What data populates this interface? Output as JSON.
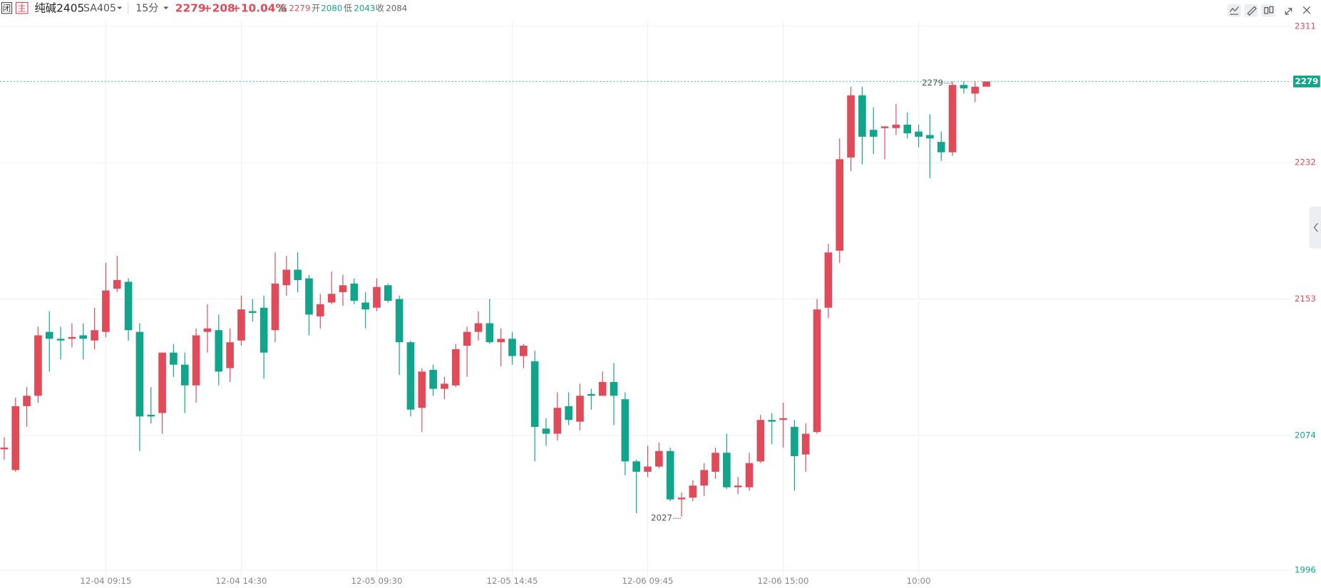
{
  "header": {
    "status": "闭",
    "main": "主",
    "name": "纯碱2405",
    "code": "SA405",
    "period": "15分",
    "price": 2279,
    "change": "+208",
    "change_pct": "+10.04%",
    "stats": [
      {
        "label": "高",
        "value": 2279
      },
      {
        "label": "开",
        "value": 2080
      },
      {
        "label": "低",
        "value": 2043
      },
      {
        "label": "收",
        "value": 2084
      }
    ]
  },
  "chart_data": {
    "type": "candlestick",
    "categories": [
      null,
      null,
      null,
      null,
      null,
      null,
      null,
      null,
      null,
      "12-04 09:15",
      null,
      null,
      null,
      null,
      null,
      null,
      null,
      null,
      null,
      null,
      null,
      "12-04 14:30",
      null,
      null,
      null,
      null,
      null,
      null,
      null,
      null,
      null,
      null,
      null,
      "12-05 09:30",
      null,
      null,
      null,
      null,
      null,
      null,
      null,
      null,
      null,
      null,
      null,
      "12-05 14:45",
      null,
      null,
      null,
      null,
      null,
      null,
      null,
      null,
      null,
      null,
      null,
      "12-06 09:45",
      null,
      null,
      null,
      null,
      null,
      null,
      null,
      null,
      null,
      null,
      null,
      "12-06 15:00",
      null,
      null,
      null,
      null,
      null,
      null,
      null,
      null,
      null,
      null,
      null,
      "10:00",
      null,
      null,
      null,
      null,
      null,
      null
    ],
    "open": [
      2066,
      2054,
      2091,
      2097,
      2134,
      2130,
      2130,
      2132,
      2129,
      2134,
      2159,
      2163,
      2134,
      2086,
      2087,
      2122,
      2115,
      2103,
      2134,
      2135,
      2113,
      2129,
      2146,
      2148,
      2135,
      2161,
      2170,
      2165,
      2143,
      2151,
      2157,
      2162,
      2151,
      2148,
      2161,
      2153,
      2128,
      2090,
      2112,
      2101,
      2103,
      2126,
      2134,
      2139,
      2128,
      2130,
      2120,
      2117,
      2078,
      2075,
      2091,
      2082,
      2098,
      2097,
      2105,
      2095,
      2059,
      2053,
      2056,
      2065,
      2037,
      2038,
      2045,
      2053,
      2064,
      2044,
      2044,
      2059,
      2083,
      2083,
      2079,
      2063,
      2076,
      2148,
      2181,
      2235,
      2271,
      2251,
      2252,
      2252,
      2254,
      2250,
      2248,
      2244,
      2238,
      2277,
      2272,
      2276
    ],
    "high": [
      2073,
      2096,
      2102,
      2137,
      2146,
      2137,
      2139,
      2139,
      2148,
      2174,
      2178,
      2165,
      2139,
      2102,
      2122,
      2127,
      2122,
      2136,
      2150,
      2144,
      2136,
      2155,
      2153,
      2155,
      2180,
      2178,
      2180,
      2167,
      2156,
      2169,
      2167,
      2165,
      2157,
      2165,
      2162,
      2155,
      2129,
      2113,
      2115,
      2108,
      2127,
      2137,
      2146,
      2153,
      2136,
      2134,
      2127,
      2123,
      2084,
      2099,
      2099,
      2104,
      2101,
      2111,
      2116,
      2099,
      2060,
      2068,
      2070,
      2067,
      2041,
      2048,
      2058,
      2067,
      2075,
      2050,
      2064,
      2086,
      2087,
      2093,
      2083,
      2081,
      2153,
      2185,
      2246,
      2276,
      2276,
      2264,
      2253,
      2266,
      2261,
      2254,
      2260,
      2250,
      2279,
      2279,
      2279,
      2279
    ],
    "low": [
      2060,
      2053,
      2079,
      2093,
      2111,
      2118,
      2125,
      2118,
      2124,
      2131,
      2157,
      2129,
      2065,
      2081,
      2075,
      2108,
      2087,
      2093,
      2122,
      2103,
      2105,
      2126,
      2140,
      2107,
      2128,
      2155,
      2157,
      2132,
      2136,
      2150,
      2149,
      2150,
      2136,
      2146,
      2151,
      2109,
      2085,
      2076,
      2097,
      2095,
      2102,
      2108,
      2129,
      2127,
      2114,
      2115,
      2113,
      2059,
      2068,
      2071,
      2080,
      2077,
      2089,
      2097,
      2080,
      2051,
      2029,
      2050,
      2055,
      2036,
      2027,
      2036,
      2039,
      2049,
      2043,
      2040,
      2042,
      2058,
      2069,
      2067,
      2042,
      2053,
      2075,
      2142,
      2174,
      2227,
      2231,
      2237,
      2234,
      2248,
      2246,
      2241,
      2223,
      2233,
      2236,
      2272,
      2267,
      2276
    ],
    "close": [
      2067,
      2091,
      2097,
      2132,
      2130,
      2129,
      2131,
      2130,
      2135,
      2158,
      2164,
      2135,
      2085,
      2085,
      2122,
      2115,
      2103,
      2132,
      2136,
      2111,
      2128,
      2147,
      2145,
      2122,
      2162,
      2170,
      2164,
      2144,
      2150,
      2156,
      2161,
      2152,
      2147,
      2160,
      2152,
      2128,
      2089,
      2111,
      2101,
      2104,
      2124,
      2134,
      2139,
      2128,
      2130,
      2120,
      2126,
      2079,
      2075,
      2090,
      2083,
      2097,
      2097,
      2105,
      2097,
      2059,
      2053,
      2056,
      2065,
      2037,
      2038,
      2045,
      2054,
      2064,
      2044,
      2045,
      2058,
      2083,
      2082,
      2084,
      2062,
      2075,
      2147,
      2180,
      2234,
      2271,
      2247,
      2247,
      2253,
      2254,
      2249,
      2247,
      2246,
      2238,
      2277,
      2275,
      2276,
      2279
    ],
    "up_color": "#e04b5a",
    "down_color": "#12a58b",
    "ylim": [
      1993,
      2314
    ],
    "yticks": [
      1996,
      2074,
      2153,
      2232,
      2311
    ],
    "ytick_colors": [
      "#12a58b",
      "#12a58b",
      "#e04b5a",
      "#e04b5a",
      "#e04b5a"
    ],
    "last_price": 2279,
    "extremes": [
      {
        "value": 2279,
        "index": 84
      },
      {
        "value": 2027,
        "index": 60
      }
    ],
    "grid": true
  }
}
